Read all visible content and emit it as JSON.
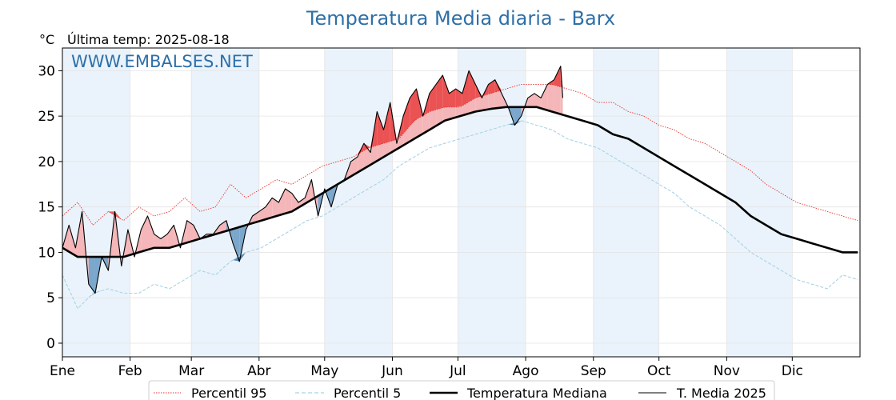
{
  "title": "Temperatura Media diaria - Barx",
  "unit_label": "°C",
  "last_temp_label": "Última temp: 2025-08-18",
  "watermark": "WWW.EMBALSES.NET",
  "colors": {
    "title": "#2e6fa7",
    "p95": "#e8322b",
    "p5": "#a8d3e6",
    "median": "#000000",
    "current": "#000000",
    "above_fill": "#f4b6b8",
    "above_fill_strong": "#e83a3a",
    "below_fill": "#7ca7cc",
    "below_fill_strong": "#2e6fa7",
    "band": "#eaf3fb"
  },
  "chart_data": {
    "type": "line",
    "xlabel": "",
    "ylabel": "°C",
    "ylim": [
      -1.5,
      32.5
    ],
    "yticks": [
      0,
      5,
      10,
      15,
      20,
      25,
      30
    ],
    "month_ticks": [
      "Ene",
      "Feb",
      "Mar",
      "Abr",
      "May",
      "Jun",
      "Jul",
      "Ago",
      "Sep",
      "Oct",
      "Nov",
      "Dic"
    ],
    "month_start_days": [
      1,
      32,
      60,
      91,
      121,
      152,
      182,
      213,
      244,
      274,
      305,
      335
    ],
    "days_in_year": 365,
    "grid": true,
    "legend_position": "bottom",
    "series": [
      {
        "name": "Percentil 95",
        "style": "dotted",
        "x_day": [
          1,
          8,
          15,
          22,
          29,
          36,
          43,
          50,
          57,
          64,
          71,
          78,
          85,
          92,
          99,
          106,
          113,
          120,
          127,
          134,
          141,
          148,
          155,
          162,
          169,
          176,
          183,
          190,
          197,
          204,
          211,
          218,
          225,
          232,
          239,
          246,
          253,
          260,
          267,
          274,
          281,
          288,
          295,
          302,
          309,
          316,
          323,
          330,
          337,
          344,
          351,
          358,
          365
        ],
        "values": [
          14.0,
          15.5,
          13.0,
          14.5,
          13.5,
          15.0,
          14.0,
          14.5,
          16.0,
          14.5,
          15.0,
          17.5,
          16.0,
          17.0,
          18.0,
          17.5,
          18.5,
          19.5,
          20.0,
          20.5,
          21.5,
          22.0,
          22.5,
          24.5,
          25.5,
          26.0,
          26.0,
          27.0,
          27.5,
          28.0,
          28.5,
          28.5,
          28.5,
          28.0,
          27.5,
          26.5,
          26.5,
          25.5,
          25.0,
          24.0,
          23.5,
          22.5,
          22.0,
          21.0,
          20.0,
          19.0,
          17.5,
          16.5,
          15.5,
          15.0,
          14.5,
          14.0,
          13.5
        ]
      },
      {
        "name": "Percentil 5",
        "style": "dashed",
        "x_day": [
          1,
          8,
          15,
          22,
          29,
          36,
          43,
          50,
          57,
          64,
          71,
          78,
          85,
          92,
          99,
          106,
          113,
          120,
          127,
          134,
          141,
          148,
          155,
          162,
          169,
          176,
          183,
          190,
          197,
          204,
          211,
          218,
          225,
          232,
          239,
          246,
          253,
          260,
          267,
          274,
          281,
          288,
          295,
          302,
          309,
          316,
          323,
          330,
          337,
          344,
          351,
          358,
          365
        ],
        "values": [
          7.5,
          3.8,
          5.5,
          6.0,
          5.5,
          5.5,
          6.5,
          6.0,
          7.0,
          8.0,
          7.5,
          9.0,
          10.0,
          10.5,
          11.5,
          12.5,
          13.5,
          14.0,
          15.0,
          16.0,
          17.0,
          18.0,
          19.5,
          20.5,
          21.5,
          22.0,
          22.5,
          23.0,
          23.5,
          24.0,
          24.5,
          24.0,
          23.5,
          22.5,
          22.0,
          21.5,
          20.5,
          19.5,
          18.5,
          17.5,
          16.5,
          15.0,
          14.0,
          13.0,
          11.5,
          10.0,
          9.0,
          8.0,
          7.0,
          6.5,
          6.0,
          7.5,
          7.0
        ]
      },
      {
        "name": "Temperatura Mediana",
        "style": "solid-thick",
        "x_day": [
          1,
          8,
          15,
          22,
          29,
          36,
          43,
          50,
          57,
          64,
          71,
          78,
          85,
          92,
          99,
          106,
          113,
          120,
          127,
          134,
          141,
          148,
          155,
          162,
          169,
          176,
          183,
          190,
          197,
          204,
          211,
          218,
          225,
          232,
          239,
          246,
          253,
          260,
          267,
          274,
          281,
          288,
          295,
          302,
          309,
          316,
          323,
          330,
          337,
          344,
          351,
          358,
          365
        ],
        "values": [
          10.5,
          9.5,
          9.5,
          9.5,
          9.5,
          10.0,
          10.5,
          10.5,
          11.0,
          11.5,
          12.0,
          12.5,
          13.0,
          13.5,
          14.0,
          14.5,
          15.5,
          16.5,
          17.5,
          18.5,
          19.5,
          20.5,
          21.5,
          22.5,
          23.5,
          24.5,
          25.0,
          25.5,
          25.8,
          26.0,
          26.0,
          26.0,
          25.5,
          25.0,
          24.5,
          24.0,
          23.0,
          22.5,
          21.5,
          20.5,
          19.5,
          18.5,
          17.5,
          16.5,
          15.5,
          14.0,
          13.0,
          12.0,
          11.5,
          11.0,
          10.5,
          10.0,
          10.0
        ]
      },
      {
        "name": "T. Media 2025",
        "style": "solid",
        "x_day": [
          1,
          4,
          7,
          10,
          13,
          16,
          19,
          22,
          25,
          28,
          31,
          34,
          37,
          40,
          43,
          46,
          49,
          52,
          55,
          58,
          61,
          64,
          67,
          70,
          73,
          76,
          79,
          82,
          85,
          88,
          91,
          94,
          97,
          100,
          103,
          106,
          109,
          112,
          115,
          118,
          121,
          124,
          127,
          130,
          133,
          136,
          139,
          142,
          145,
          148,
          151,
          154,
          157,
          160,
          163,
          166,
          169,
          172,
          175,
          178,
          181,
          184,
          187,
          190,
          193,
          196,
          199,
          202,
          205,
          208,
          211,
          214,
          217,
          220,
          223,
          226,
          229,
          230
        ],
        "values": [
          10.5,
          13.0,
          10.5,
          14.5,
          6.5,
          5.5,
          9.5,
          8.0,
          14.5,
          8.5,
          12.5,
          9.5,
          12.5,
          14.0,
          12.0,
          11.5,
          12.0,
          13.0,
          10.5,
          13.5,
          13.0,
          11.5,
          12.0,
          12.0,
          13.0,
          13.5,
          11.0,
          9.0,
          12.5,
          14.0,
          14.5,
          15.0,
          16.0,
          15.5,
          17.0,
          16.5,
          15.5,
          16.0,
          18.0,
          14.0,
          17.0,
          15.0,
          17.5,
          18.0,
          20.0,
          20.5,
          22.0,
          21.0,
          25.5,
          23.5,
          26.5,
          22.0,
          25.0,
          27.0,
          28.0,
          25.0,
          27.5,
          28.5,
          29.5,
          27.5,
          28.0,
          27.5,
          30.0,
          28.5,
          27.0,
          28.5,
          29.0,
          27.5,
          26.0,
          24.0,
          25.0,
          27.0,
          27.5,
          27.0,
          28.5,
          29.0,
          30.5,
          27.0
        ]
      }
    ]
  },
  "legend": {
    "p95": "Percentil 95",
    "p5": "Percentil 5",
    "median": "Temperatura Mediana",
    "current": "T. Media 2025"
  }
}
